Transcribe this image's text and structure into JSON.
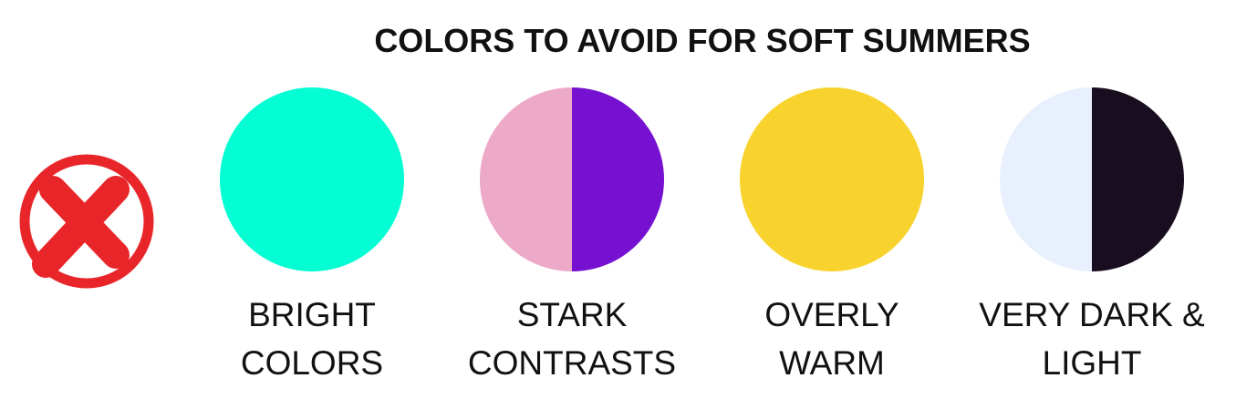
{
  "header": {
    "title": "COLORS TO AVOID FOR SOFT SUMMERS"
  },
  "items": [
    {
      "lines": [
        "BRIGHT",
        "COLORS"
      ]
    },
    {
      "lines": [
        "STARK",
        "CONTRASTS"
      ]
    },
    {
      "lines": [
        "OVERLY",
        "WARM"
      ]
    },
    {
      "lines": [
        "VERY DARK &",
        "LIGHT"
      ]
    }
  ]
}
